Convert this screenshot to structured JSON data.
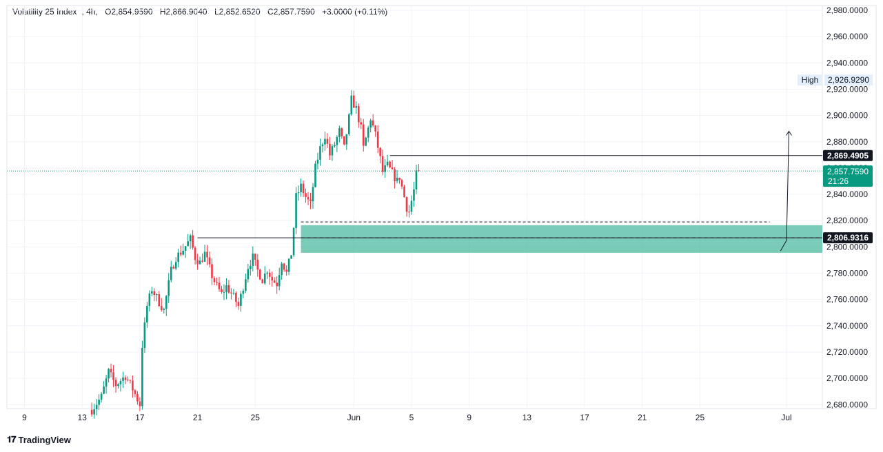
{
  "header": {
    "symbol": "Volatility 25 Index",
    "interval": "4h",
    "open": "O2,854.9590",
    "high": "H2,866.9040",
    "low": "L2,852.6520",
    "close": "C2,857.7590",
    "change": "+3.0000 (+0.11%)"
  },
  "brand": {
    "name": "TradingView"
  },
  "colors": {
    "up": "#089981",
    "down": "#f23645",
    "zone": "#4fb9a2",
    "price_badge": "#089981",
    "level_badge": "#131722"
  },
  "chart_data": {
    "type": "candlestick",
    "title": "",
    "xlabel": "",
    "ylabel": "",
    "ylim": [
      2670,
      2985
    ],
    "y_ticks": [
      "2,980.0000",
      "2,960.0000",
      "2,940.0000",
      "2,920.0000",
      "2,900.0000",
      "2,880.0000",
      "2,860.0000",
      "2,840.0000",
      "2,820.0000",
      "2,800.0000",
      "2,780.0000",
      "2,760.0000",
      "2,740.0000",
      "2,720.0000",
      "2,700.0000",
      "2,680.0000"
    ],
    "x_ticks": [
      {
        "label": "9",
        "t": 0
      },
      {
        "label": "13",
        "t": 24
      },
      {
        "label": "17",
        "t": 48
      },
      {
        "label": "21",
        "t": 72
      },
      {
        "label": "25",
        "t": 96
      },
      {
        "label": "Jun",
        "t": 137
      },
      {
        "label": "5",
        "t": 161
      },
      {
        "label": "9",
        "t": 185
      },
      {
        "label": "13",
        "t": 209
      },
      {
        "label": "17",
        "t": 233
      },
      {
        "label": "21",
        "t": 257
      },
      {
        "label": "25",
        "t": 281
      },
      {
        "label": "Jul",
        "t": 317
      }
    ],
    "keypoints": [
      [
        28,
        2676
      ],
      [
        32,
        2686
      ],
      [
        35,
        2705
      ],
      [
        38,
        2695
      ],
      [
        42,
        2702
      ],
      [
        45,
        2692
      ],
      [
        48,
        2680
      ],
      [
        49,
        2725
      ],
      [
        51,
        2755
      ],
      [
        53,
        2768
      ],
      [
        56,
        2758
      ],
      [
        58,
        2752
      ],
      [
        61,
        2782
      ],
      [
        63,
        2792
      ],
      [
        66,
        2798
      ],
      [
        69,
        2806
      ],
      [
        71,
        2792
      ],
      [
        73,
        2788
      ],
      [
        75,
        2795
      ],
      [
        78,
        2778
      ],
      [
        80,
        2770
      ],
      [
        82,
        2764
      ],
      [
        84,
        2770
      ],
      [
        87,
        2762
      ],
      [
        89,
        2755
      ],
      [
        91,
        2770
      ],
      [
        93,
        2785
      ],
      [
        95,
        2792
      ],
      [
        97,
        2782
      ],
      [
        99,
        2775
      ],
      [
        101,
        2783
      ],
      [
        103,
        2775
      ],
      [
        105,
        2772
      ],
      [
        107,
        2790
      ],
      [
        109,
        2780
      ],
      [
        111,
        2795
      ],
      [
        112,
        2815
      ],
      [
        113,
        2838
      ],
      [
        115,
        2846
      ],
      [
        117,
        2838
      ],
      [
        119,
        2832
      ],
      [
        121,
        2860
      ],
      [
        123,
        2875
      ],
      [
        125,
        2885
      ],
      [
        127,
        2870
      ],
      [
        129,
        2878
      ],
      [
        131,
        2888
      ],
      [
        133,
        2875
      ],
      [
        135,
        2898
      ],
      [
        136,
        2912
      ],
      [
        138,
        2905
      ],
      [
        140,
        2890
      ],
      [
        141,
        2875
      ],
      [
        143,
        2890
      ],
      [
        144,
        2898
      ],
      [
        146,
        2885
      ],
      [
        148,
        2867
      ],
      [
        149,
        2857
      ],
      [
        151,
        2862
      ],
      [
        153,
        2856
      ],
      [
        155,
        2850
      ],
      [
        156,
        2853
      ],
      [
        158,
        2838
      ],
      [
        159,
        2830
      ],
      [
        160,
        2827
      ],
      [
        162,
        2843
      ],
      [
        163,
        2855
      ],
      [
        164,
        2858
      ]
    ],
    "last_price": {
      "value": "2,857.7590",
      "countdown": "21:26"
    },
    "high_marker": {
      "label": "High",
      "value": "2,926.9290",
      "y": 2926.929
    },
    "resistance_line": {
      "value": "2,869.4905",
      "y": 2869.4905,
      "from_t": 152
    },
    "support_line": {
      "value": "2,806.9316",
      "y": 2806.9316,
      "from_t": 72
    },
    "dashed_line": {
      "y": 2819,
      "from_t": 115,
      "to_t": 310
    },
    "demand_zone": {
      "top": 2816.5,
      "bottom": 2795.5,
      "from_t": 115
    },
    "projection_arrow": {
      "from": [
        314.5,
        2797
      ],
      "via": [
        317,
        2805
      ],
      "to": [
        318,
        2888
      ]
    }
  }
}
